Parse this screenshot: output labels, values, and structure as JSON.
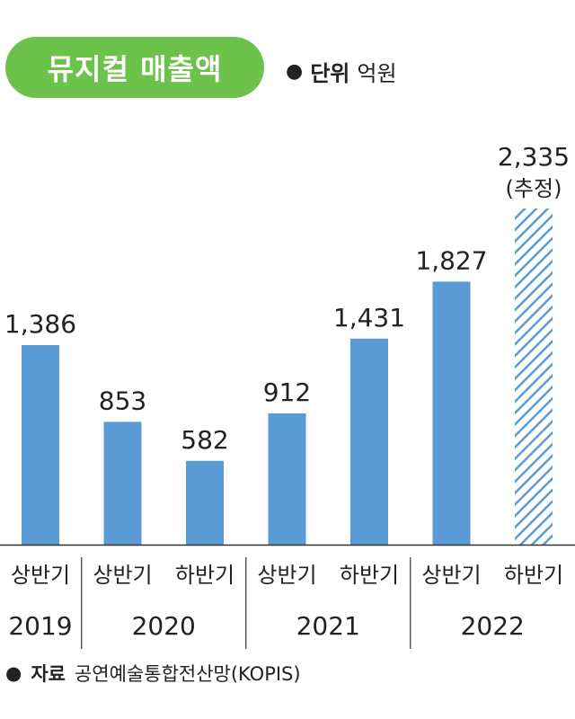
{
  "header": {
    "title": "뮤지컬 매출액",
    "unit_bullet": "●",
    "unit_label": "단위",
    "unit_value": "억원"
  },
  "footer": {
    "source_bullet": "●",
    "source_label": "자료",
    "source_value": "공연예술통합전산망(KOPIS)"
  },
  "chart_data": {
    "type": "bar",
    "categories": [
      "상반기",
      "상반기",
      "하반기",
      "상반기",
      "하반기",
      "상반기",
      "하반기"
    ],
    "values": [
      1386,
      853,
      582,
      912,
      1431,
      1827,
      2335
    ],
    "value_labels": [
      "1,386",
      "853",
      "582",
      "912",
      "1,431",
      "1,827",
      "2,335"
    ],
    "estimated": [
      false,
      false,
      false,
      false,
      false,
      false,
      true
    ],
    "estimate_note": "(추정)",
    "years": [
      {
        "label": "2019",
        "from": 0,
        "to": 0
      },
      {
        "label": "2020",
        "from": 1,
        "to": 2
      },
      {
        "label": "2021",
        "from": 3,
        "to": 4
      },
      {
        "label": "2022",
        "from": 5,
        "to": 6
      }
    ],
    "title": "",
    "xlabel": "",
    "ylabel": "",
    "ylim": [
      0,
      2335
    ],
    "colors": {
      "bar": "#5b9bd5",
      "hatch": "#5b9bd5",
      "axis": "#333333",
      "divider": "#333333"
    },
    "grid": false
  }
}
